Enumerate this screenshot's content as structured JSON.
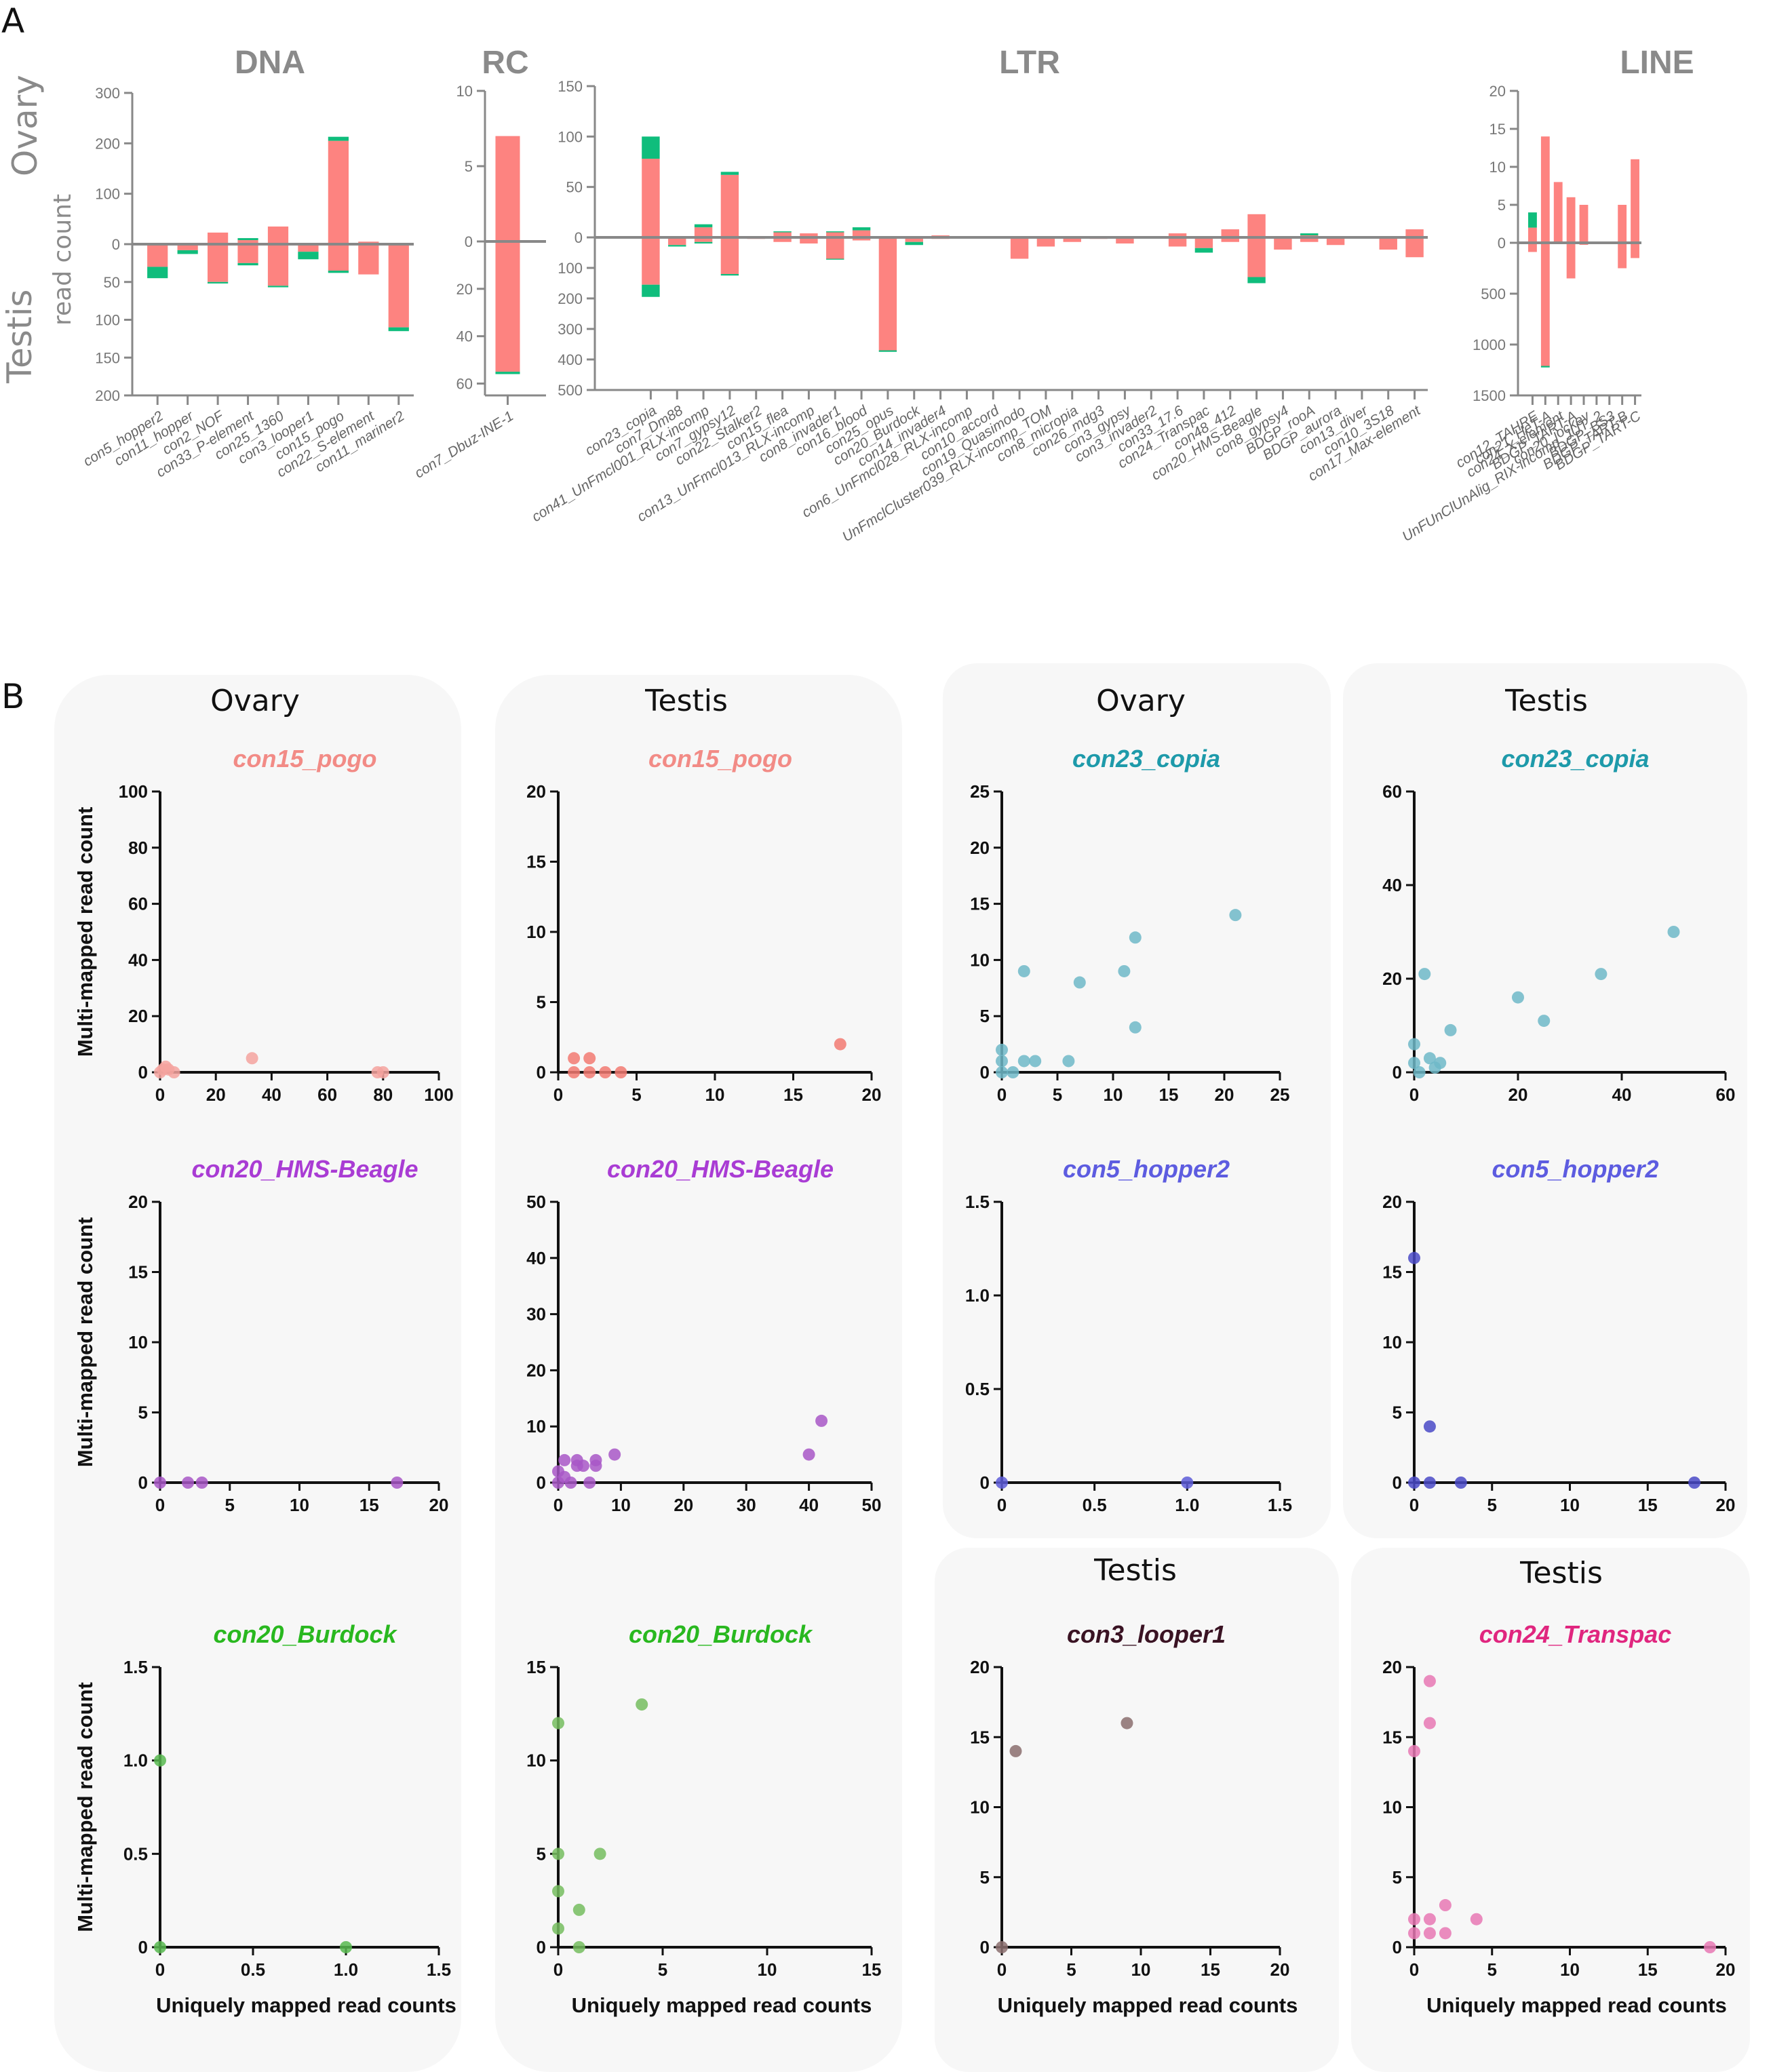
{
  "panel_labels": {
    "a": "A",
    "b": "B"
  },
  "side_labels": {
    "ovary": "Ovary",
    "testis": "Testis",
    "read_count": "read count"
  },
  "colors": {
    "unique": "#fd8380",
    "multi": "#0fbd7c",
    "axis": "#888888",
    "panel_bg": "#f7f7f7"
  },
  "chart_data": [
    {
      "type": "bar",
      "stacked": true,
      "diverging": true,
      "title": "DNA",
      "categories": [
        "con5_hopper2",
        "con11_hopper",
        "con2_NOF",
        "con33_P-element",
        "con25_1360",
        "con3_looper1",
        "con15_pogo",
        "con22_S-element",
        "con11_mariner2"
      ],
      "series": [
        {
          "values_up": [
            0,
            0,
            23,
            8,
            35,
            0,
            205,
            5,
            0
          ],
          "values_down": [
            30,
            8,
            50,
            25,
            55,
            10,
            35,
            40,
            110
          ]
        },
        {
          "values_up": [
            0,
            0,
            0,
            4,
            0,
            0,
            8,
            0,
            0
          ],
          "values_down": [
            15,
            5,
            2,
            3,
            2,
            10,
            3,
            0,
            5
          ]
        }
      ],
      "ylim_up": [
        0,
        300
      ],
      "ylim_down": [
        0,
        200
      ],
      "ticks_up": [
        "300",
        "200",
        "100",
        "0"
      ],
      "ticks_down": [
        "50",
        "100",
        "150",
        "200"
      ]
    },
    {
      "type": "bar",
      "stacked": true,
      "diverging": true,
      "title": "RC",
      "categories": [
        "con7_Dbuz-INE-1"
      ],
      "series": [
        {
          "values_up": [
            7
          ],
          "values_down": [
            55
          ]
        },
        {
          "values_up": [
            0
          ],
          "values_down": [
            1
          ]
        }
      ],
      "ylim_up": [
        0,
        10
      ],
      "ylim_down": [
        0,
        65
      ],
      "ticks_up": [
        "10",
        "5",
        "0"
      ],
      "ticks_down": [
        "20",
        "40",
        "60"
      ]
    },
    {
      "type": "bar",
      "stacked": true,
      "diverging": true,
      "title": "LTR",
      "categories": [
        "con23_copia",
        "con7_Dm88",
        "con41_UnFmcl001_RLX-incomp",
        "con7_gypsy12",
        "con22_Stalker2",
        "con15_flea",
        "con13_UnFmcl013_RLX-incomp",
        "con8_invader1",
        "con16_blood",
        "con25_opus",
        "con20_Burdock",
        "con14_invader4",
        "con6_UnFmcl028_RLX-incomp",
        "con10_accord",
        "con19_Quasimodo",
        "UnFmclCluster039_RLX-incomp_TOM",
        "con8_micropia",
        "con26_mdg3",
        "con3_gypsy",
        "con3_invader2",
        "con33_17.6",
        "con24_Transpac",
        "con48_412",
        "con20_HMS-Beagle",
        "con8_gypsy4",
        "BDGP_rooA",
        "BDGP_aurora",
        "con13_diver",
        "con10_3S18",
        "con17_Max-element"
      ],
      "series": [
        {
          "values_up": [
            78,
            0,
            10,
            62,
            1,
            5,
            4,
            5,
            7,
            0,
            0,
            2,
            1,
            0,
            0,
            0,
            0,
            0,
            0,
            0,
            4,
            0,
            8,
            23,
            0,
            2,
            0,
            0,
            0,
            8
          ],
          "values_down": [
            155,
            25,
            15,
            120,
            5,
            15,
            20,
            70,
            10,
            370,
            15,
            5,
            3,
            2,
            70,
            30,
            15,
            5,
            20,
            0,
            30,
            35,
            15,
            130,
            40,
            15,
            25,
            0,
            40,
            65
          ]
        },
        {
          "values_up": [
            22,
            0,
            3,
            3,
            0,
            1,
            0,
            1,
            3,
            0,
            0,
            0,
            0,
            0,
            0,
            0,
            0,
            0,
            0,
            0,
            0,
            0,
            0,
            0,
            0,
            2,
            0,
            0,
            0,
            0
          ],
          "values_down": [
            40,
            5,
            5,
            5,
            0,
            0,
            0,
            3,
            0,
            5,
            10,
            0,
            0,
            0,
            0,
            0,
            0,
            0,
            0,
            0,
            0,
            15,
            0,
            20,
            0,
            0,
            0,
            0,
            0,
            0
          ]
        }
      ],
      "ylim_up": [
        0,
        150
      ],
      "ylim_down": [
        0,
        500
      ],
      "ticks_up": [
        "150",
        "100",
        "50",
        "0"
      ],
      "ticks_down": [
        "100",
        "200",
        "300",
        "400",
        "500"
      ]
    },
    {
      "type": "bar",
      "stacked": true,
      "diverging": true,
      "title": "LINE",
      "categories": [
        "con12_TAHRE",
        "con21_HeT-A",
        "con24_X-element",
        "BDGP_TART-A",
        "con20_jockey",
        "UnFUnClUnAlig_RIX-incomp_JUT_2",
        "BDGP_BS3",
        "BDGP_TART-B",
        "BDGP_TART-C"
      ],
      "series": [
        {
          "values_up": [
            2,
            14,
            8,
            6,
            5,
            0,
            0,
            5,
            11
          ],
          "values_down": [
            90,
            1210,
            0,
            350,
            20,
            0,
            0,
            250,
            150
          ]
        },
        {
          "values_up": [
            2,
            0,
            0,
            0,
            0,
            0,
            0,
            0,
            0
          ],
          "values_down": [
            0,
            15,
            0,
            0,
            0,
            0,
            0,
            0,
            0
          ]
        }
      ],
      "ylim_up": [
        0,
        20
      ],
      "ylim_down": [
        0,
        1500
      ],
      "ticks_up": [
        "20",
        "15",
        "10",
        "5",
        "0"
      ],
      "ticks_down": [
        "500",
        "1000",
        "1500"
      ]
    },
    {
      "type": "scatter",
      "tissue": "Ovary",
      "title": "con15_pogo",
      "color": "#f5a39f",
      "xlim": [
        0,
        100
      ],
      "ylim": [
        0,
        100
      ],
      "xticks": [
        "0",
        "20",
        "40",
        "60",
        "80",
        "100"
      ],
      "yticks": [
        "0",
        "20",
        "40",
        "60",
        "80",
        "100"
      ],
      "xlabel": "",
      "ylabel": "Multi-mapped read count",
      "x": [
        0,
        1,
        2,
        3,
        5,
        33,
        78,
        80
      ],
      "y": [
        0,
        1,
        2,
        1,
        0,
        5,
        0,
        0
      ]
    },
    {
      "type": "scatter",
      "tissue": "Testis",
      "title": "con15_pogo",
      "color": "#f27a72",
      "xlim": [
        0,
        20
      ],
      "ylim": [
        0,
        20
      ],
      "xticks": [
        "0",
        "5",
        "10",
        "15",
        "20"
      ],
      "yticks": [
        "0",
        "5",
        "10",
        "15",
        "20"
      ],
      "xlabel": "",
      "ylabel": "",
      "x": [
        1,
        1,
        2,
        2,
        3,
        4,
        18
      ],
      "y": [
        1,
        0,
        1,
        0,
        0,
        0,
        2
      ]
    },
    {
      "type": "scatter",
      "tissue": "Ovary",
      "title": "con23_copia",
      "color": "#6fb8c8",
      "xlim": [
        0,
        25
      ],
      "ylim": [
        0,
        25
      ],
      "xticks": [
        "0",
        "5",
        "10",
        "15",
        "20",
        "25"
      ],
      "yticks": [
        "0",
        "5",
        "10",
        "15",
        "20",
        "25"
      ],
      "xlabel": "",
      "ylabel": "",
      "x": [
        0,
        0,
        0,
        1,
        2,
        2,
        3,
        6,
        7,
        11,
        12,
        12,
        21
      ],
      "y": [
        0,
        1,
        2,
        0,
        9,
        1,
        1,
        1,
        8,
        9,
        12,
        4,
        14
      ]
    },
    {
      "type": "scatter",
      "tissue": "Testis",
      "title": "con23_copia",
      "color": "#6fb8c8",
      "xlim": [
        0,
        60
      ],
      "ylim": [
        0,
        60
      ],
      "xticks": [
        "0",
        "20",
        "40",
        "60"
      ],
      "yticks": [
        "0",
        "20",
        "40",
        "60"
      ],
      "xlabel": "",
      "ylabel": "",
      "x": [
        0,
        0,
        1,
        2,
        3,
        4,
        5,
        7,
        20,
        25,
        36,
        50
      ],
      "y": [
        6,
        2,
        0,
        21,
        3,
        1,
        2,
        9,
        16,
        11,
        21,
        30
      ]
    },
    {
      "type": "scatter",
      "tissue": "Ovary",
      "title": "con20_HMS-Beagle",
      "color": "#a857c7",
      "xlim": [
        0,
        20
      ],
      "ylim": [
        0,
        20
      ],
      "xticks": [
        "0",
        "5",
        "10",
        "15",
        "20"
      ],
      "yticks": [
        "0",
        "5",
        "10",
        "15",
        "20"
      ],
      "xlabel": "",
      "ylabel": "Multi-mapped read count",
      "x": [
        0,
        2,
        3,
        17
      ],
      "y": [
        0,
        0,
        0,
        0
      ]
    },
    {
      "type": "scatter",
      "tissue": "Testis",
      "title": "con20_HMS-Beagle",
      "color": "#a857c7",
      "xlim": [
        0,
        50
      ],
      "ylim": [
        0,
        50
      ],
      "xticks": [
        "0",
        "10",
        "20",
        "30",
        "40",
        "50"
      ],
      "yticks": [
        "0",
        "10",
        "20",
        "30",
        "40",
        "50"
      ],
      "xlabel": "",
      "ylabel": "",
      "x": [
        0,
        0,
        1,
        1,
        2,
        3,
        3,
        4,
        5,
        6,
        6,
        9,
        40,
        42
      ],
      "y": [
        0,
        2,
        1,
        4,
        0,
        4,
        3,
        3,
        0,
        3,
        4,
        5,
        5,
        11
      ]
    },
    {
      "type": "scatter",
      "tissue": "Ovary",
      "title": "con5_hopper2",
      "color": "#5d5cd8",
      "xlim": [
        0,
        1.5
      ],
      "ylim": [
        0,
        1.5
      ],
      "xticks": [
        "0",
        "0.5",
        "1.0",
        "1.5"
      ],
      "yticks": [
        "0",
        "0.5",
        "1.0",
        "1.5"
      ],
      "xlabel": "",
      "ylabel": "",
      "x": [
        0,
        1
      ],
      "y": [
        0,
        0
      ]
    },
    {
      "type": "scatter",
      "tissue": "Testis",
      "title": "con5_hopper2",
      "color": "#4a4ac7",
      "xlim": [
        0,
        20
      ],
      "ylim": [
        0,
        20
      ],
      "xticks": [
        "0",
        "5",
        "10",
        "15",
        "20"
      ],
      "yticks": [
        "0",
        "5",
        "10",
        "15",
        "20"
      ],
      "xlabel": "",
      "ylabel": "",
      "x": [
        0,
        0,
        1,
        1,
        3,
        18
      ],
      "y": [
        16,
        0,
        4,
        0,
        0,
        0
      ]
    },
    {
      "type": "scatter",
      "tissue": "Ovary",
      "title": "con20_Burdock",
      "color": "#57b84f",
      "xlim": [
        0,
        1.5
      ],
      "ylim": [
        0,
        1.5
      ],
      "xticks": [
        "0",
        "0.5",
        "1.0",
        "1.5"
      ],
      "yticks": [
        "0",
        "0.5",
        "1.0",
        "1.5"
      ],
      "xlabel": "Uniquely mapped read counts",
      "ylabel": "Multi-mapped read count",
      "x": [
        0,
        0,
        1
      ],
      "y": [
        1,
        0,
        0
      ]
    },
    {
      "type": "scatter",
      "tissue": "Testis",
      "title": "con20_Burdock",
      "color": "#75bd5f",
      "xlim": [
        0,
        15
      ],
      "ylim": [
        0,
        15
      ],
      "xticks": [
        "0",
        "5",
        "10",
        "15"
      ],
      "yticks": [
        "0",
        "5",
        "10",
        "15"
      ],
      "xlabel": "Uniquely mapped read counts",
      "ylabel": "",
      "x": [
        0,
        0,
        0,
        0,
        1,
        1,
        2,
        4
      ],
      "y": [
        12,
        5,
        3,
        1,
        2,
        0,
        5,
        13
      ]
    },
    {
      "type": "scatter",
      "tissue": "Testis",
      "title": "con3_looper1",
      "color": "#8b6f6f",
      "xlim": [
        0,
        20
      ],
      "ylim": [
        0,
        20
      ],
      "xticks": [
        "0",
        "5",
        "10",
        "15",
        "20"
      ],
      "yticks": [
        "0",
        "5",
        "10",
        "15",
        "20"
      ],
      "xlabel": "Uniquely mapped read counts",
      "ylabel": "",
      "x": [
        0,
        1,
        9
      ],
      "y": [
        0,
        14,
        16
      ]
    },
    {
      "type": "scatter",
      "tissue": "Testis",
      "title": "con24_Transpac",
      "color": "#e878b4",
      "xlim": [
        0,
        20
      ],
      "ylim": [
        0,
        20
      ],
      "xticks": [
        "0",
        "5",
        "10",
        "15",
        "20"
      ],
      "yticks": [
        "0",
        "5",
        "10",
        "15",
        "20"
      ],
      "xlabel": "Uniquely mapped read counts",
      "ylabel": "",
      "x": [
        0,
        0,
        0,
        1,
        1,
        1,
        1,
        2,
        2,
        4,
        19
      ],
      "y": [
        14,
        2,
        1,
        19,
        16,
        2,
        1,
        3,
        1,
        2,
        0
      ]
    }
  ]
}
